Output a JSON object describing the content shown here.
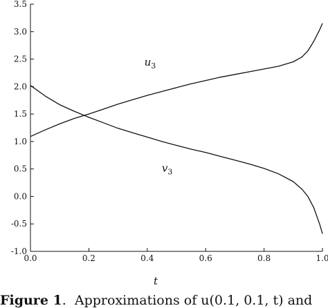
{
  "chart_data": {
    "type": "line",
    "xlabel": "t",
    "ylabel": "",
    "xlim": [
      0.0,
      1.0
    ],
    "ylim": [
      -1.0,
      3.5
    ],
    "x_ticks": [
      "0.0",
      "0.2",
      "0.4",
      "0.6",
      "0.8",
      "1.0"
    ],
    "y_ticks": [
      "-1.0",
      "-0.5",
      "0.0",
      "0.5",
      "1.0",
      "1.5",
      "2.0",
      "2.5",
      "3.0",
      "3.5"
    ],
    "grid": false,
    "series": [
      {
        "name": "u3",
        "color": "#111111",
        "x": [
          0.0,
          0.05,
          0.1,
          0.15,
          0.2,
          0.25,
          0.3,
          0.35,
          0.4,
          0.45,
          0.5,
          0.55,
          0.6,
          0.65,
          0.7,
          0.75,
          0.8,
          0.85,
          0.9,
          0.93,
          0.95,
          0.97,
          0.99,
          1.0
        ],
        "values": [
          1.09,
          1.21,
          1.32,
          1.42,
          1.5,
          1.59,
          1.68,
          1.76,
          1.84,
          1.91,
          1.98,
          2.05,
          2.11,
          2.17,
          2.22,
          2.27,
          2.32,
          2.37,
          2.45,
          2.54,
          2.65,
          2.82,
          3.03,
          3.15
        ]
      },
      {
        "name": "v3",
        "color": "#111111",
        "x": [
          0.0,
          0.05,
          0.1,
          0.15,
          0.2,
          0.25,
          0.3,
          0.35,
          0.4,
          0.45,
          0.5,
          0.55,
          0.6,
          0.65,
          0.7,
          0.75,
          0.8,
          0.85,
          0.9,
          0.93,
          0.95,
          0.97,
          0.99,
          1.0
        ],
        "values": [
          2.02,
          1.83,
          1.67,
          1.55,
          1.44,
          1.34,
          1.24,
          1.16,
          1.08,
          1.0,
          0.93,
          0.86,
          0.8,
          0.73,
          0.66,
          0.59,
          0.51,
          0.41,
          0.27,
          0.13,
          0.0,
          -0.2,
          -0.5,
          -0.68
        ]
      }
    ],
    "annotations": [
      {
        "text": "u",
        "sub": "3",
        "x": 0.39,
        "y": 2.38
      },
      {
        "text": "v",
        "sub": "3",
        "x": 0.45,
        "y": 0.45
      }
    ]
  },
  "caption": {
    "label": "Figure 1",
    "text": "Approximations of u(0.1, 0.1, t) and"
  }
}
